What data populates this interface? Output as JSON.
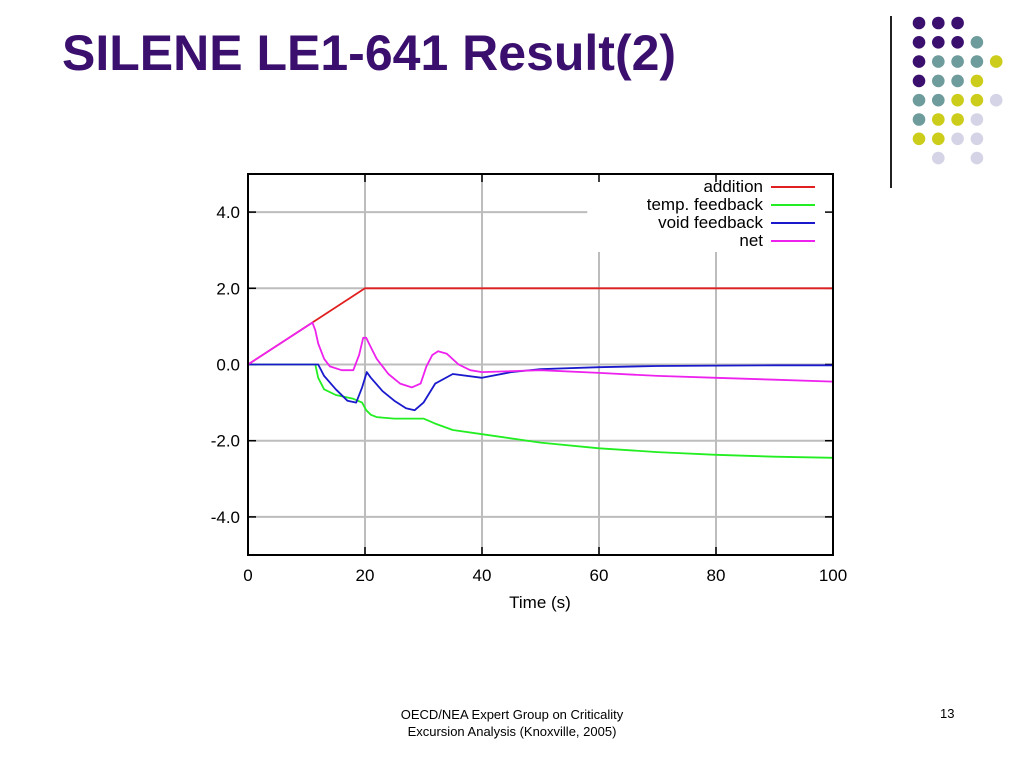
{
  "slide": {
    "title": "SILENE LE1-641 Result(2)",
    "footer_line1": "OECD/NEA Expert Group on Criticality",
    "footer_line2": "Excursion Analysis (Knoxville, 2005)",
    "page_number": "13"
  },
  "decoration": {
    "colors": {
      "purple": "#3a0f6e",
      "teal": "#6e9b9b",
      "yellow": "#cccc1a",
      "lavender": "#d4d4e6"
    },
    "dot_grid": [
      [
        "purple",
        "purple",
        "purple",
        null,
        null
      ],
      [
        "purple",
        "purple",
        "purple",
        "teal",
        null
      ],
      [
        "purple",
        "teal",
        "teal",
        "teal",
        "yellow"
      ],
      [
        "purple",
        "teal",
        "teal",
        "yellow",
        null
      ],
      [
        "teal",
        "teal",
        "yellow",
        "yellow",
        "lavender"
      ],
      [
        "teal",
        "yellow",
        "yellow",
        "lavender",
        null
      ],
      [
        "yellow",
        "yellow",
        "lavender",
        "lavender",
        null
      ],
      [
        null,
        "lavender",
        null,
        "lavender",
        null
      ]
    ]
  },
  "chart_data": {
    "type": "line",
    "xlabel": "Time (s)",
    "ylabel": "",
    "xlim": [
      0,
      100
    ],
    "ylim": [
      -5,
      5
    ],
    "xticks": [
      0,
      20,
      40,
      60,
      80,
      100
    ],
    "yticks": [
      4.0,
      2.0,
      0.0,
      -2.0,
      -4.0
    ],
    "ytick_labels": [
      "4.0",
      "2.0",
      "0.0",
      "-2.0",
      "-4.0"
    ],
    "grid": true,
    "legend_position": "top-right",
    "series": [
      {
        "name": "addition",
        "color": "#e02020",
        "x": [
          0,
          20,
          100
        ],
        "y": [
          0,
          2,
          2
        ]
      },
      {
        "name": "temp. feedback",
        "color": "#22ee22",
        "x": [
          0,
          11.5,
          12,
          13,
          15,
          18,
          19.5,
          20.2,
          21,
          22,
          25,
          28,
          30,
          32,
          35,
          40,
          50,
          60,
          70,
          80,
          90,
          100
        ],
        "y": [
          0,
          0,
          -0.35,
          -0.65,
          -0.8,
          -0.9,
          -1.0,
          -1.2,
          -1.32,
          -1.38,
          -1.42,
          -1.42,
          -1.42,
          -1.55,
          -1.72,
          -1.83,
          -2.05,
          -2.2,
          -2.3,
          -2.37,
          -2.42,
          -2.45
        ]
      },
      {
        "name": "void feedback",
        "color": "#1a1acc",
        "x": [
          0,
          12,
          13,
          15,
          17,
          18.5,
          19.5,
          20.3,
          21,
          23,
          25,
          27,
          28.5,
          30,
          32,
          35,
          40,
          45,
          50,
          60,
          70,
          80,
          90,
          100
        ],
        "y": [
          0,
          0,
          -0.3,
          -0.65,
          -0.95,
          -1.0,
          -0.6,
          -0.2,
          -0.35,
          -0.7,
          -0.95,
          -1.15,
          -1.2,
          -1.0,
          -0.5,
          -0.25,
          -0.35,
          -0.2,
          -0.12,
          -0.07,
          -0.04,
          -0.03,
          -0.02,
          -0.02
        ]
      },
      {
        "name": "net",
        "color": "#ee22ee",
        "x": [
          0,
          11,
          11.5,
          12,
          13,
          14,
          16,
          18,
          19,
          19.7,
          20.2,
          21,
          22,
          24,
          26,
          28,
          29.5,
          30.5,
          31.5,
          32.5,
          34,
          36,
          38,
          40,
          50,
          60,
          70,
          80,
          90,
          100
        ],
        "y": [
          0,
          1.1,
          0.9,
          0.55,
          0.15,
          -0.05,
          -0.15,
          -0.15,
          0.25,
          0.7,
          0.7,
          0.45,
          0.15,
          -0.25,
          -0.5,
          -0.6,
          -0.5,
          -0.05,
          0.25,
          0.35,
          0.28,
          0.0,
          -0.15,
          -0.2,
          -0.15,
          -0.22,
          -0.3,
          -0.35,
          -0.4,
          -0.45
        ]
      }
    ]
  }
}
